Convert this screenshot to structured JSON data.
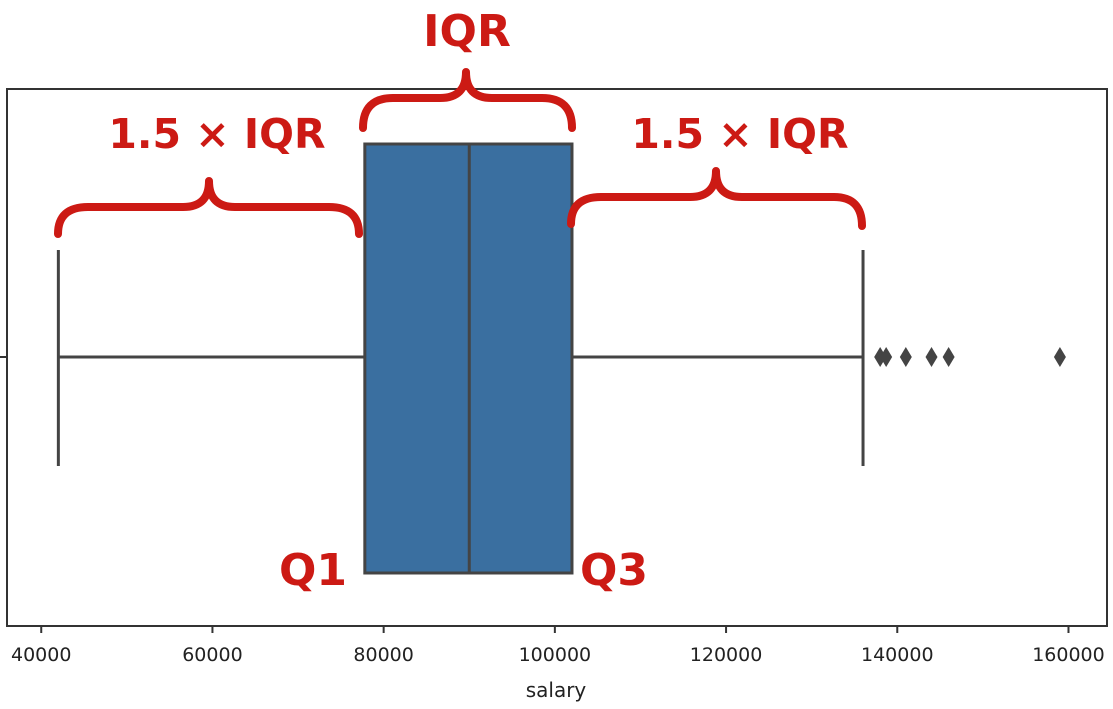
{
  "chart_data": {
    "type": "box",
    "xlabel": "salary",
    "xlim": [
      36000,
      164500
    ],
    "x_ticks": [
      40000,
      60000,
      80000,
      100000,
      120000,
      140000,
      160000
    ],
    "x_tick_labels": [
      "40000",
      "60000",
      "80000",
      "100000",
      "120000",
      "140000",
      "160000"
    ],
    "box": {
      "whisker_low": 42000,
      "q1": 77800,
      "median": 90000,
      "q3": 102000,
      "whisker_high": 136000,
      "outliers": [
        138000,
        138700,
        141000,
        144000,
        146000,
        159000
      ]
    },
    "annotations": {
      "iqr": "IQR",
      "left_range": "1.5 × IQR",
      "right_range": "1.5 × IQR",
      "q1": "Q1",
      "q3": "Q3"
    },
    "colors": {
      "box_fill": "#3a6fa0",
      "line": "#444444",
      "annotation": "#cc1a14"
    }
  }
}
